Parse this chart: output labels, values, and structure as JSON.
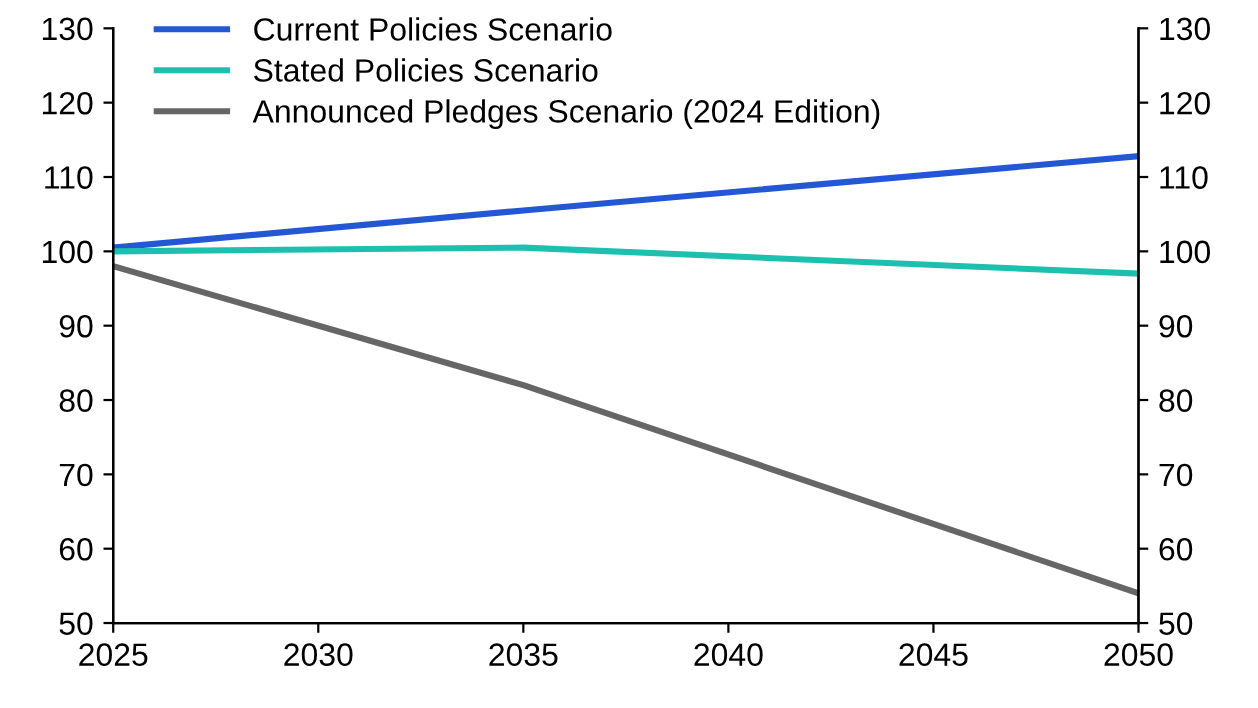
{
  "chart_data": {
    "type": "line",
    "x": [
      2025,
      2035,
      2050
    ],
    "series": [
      {
        "name": "Current Policies Scenario",
        "color": "#2457d6",
        "values": [
          100.5,
          105.5,
          112.8
        ]
      },
      {
        "name": "Stated Policies Scenario",
        "color": "#1dbfae",
        "values": [
          100,
          100.5,
          97
        ]
      },
      {
        "name": "Announced Pledges Scenario (2024 Edition)",
        "color": "#666666",
        "values": [
          98,
          82,
          54
        ]
      }
    ],
    "xlim": [
      2025,
      2050
    ],
    "xticks": [
      2025,
      2030,
      2035,
      2040,
      2045,
      2050
    ],
    "ylim": [
      50,
      130
    ],
    "yticks": [
      50,
      60,
      70,
      80,
      90,
      100,
      110,
      120,
      130
    ],
    "y2lim": [
      50,
      130
    ],
    "y2ticks": [
      50,
      60,
      70,
      80,
      90,
      100,
      110,
      120,
      130
    ],
    "grid": false,
    "legend": "top left",
    "marker": "none",
    "line_style": "solid"
  }
}
